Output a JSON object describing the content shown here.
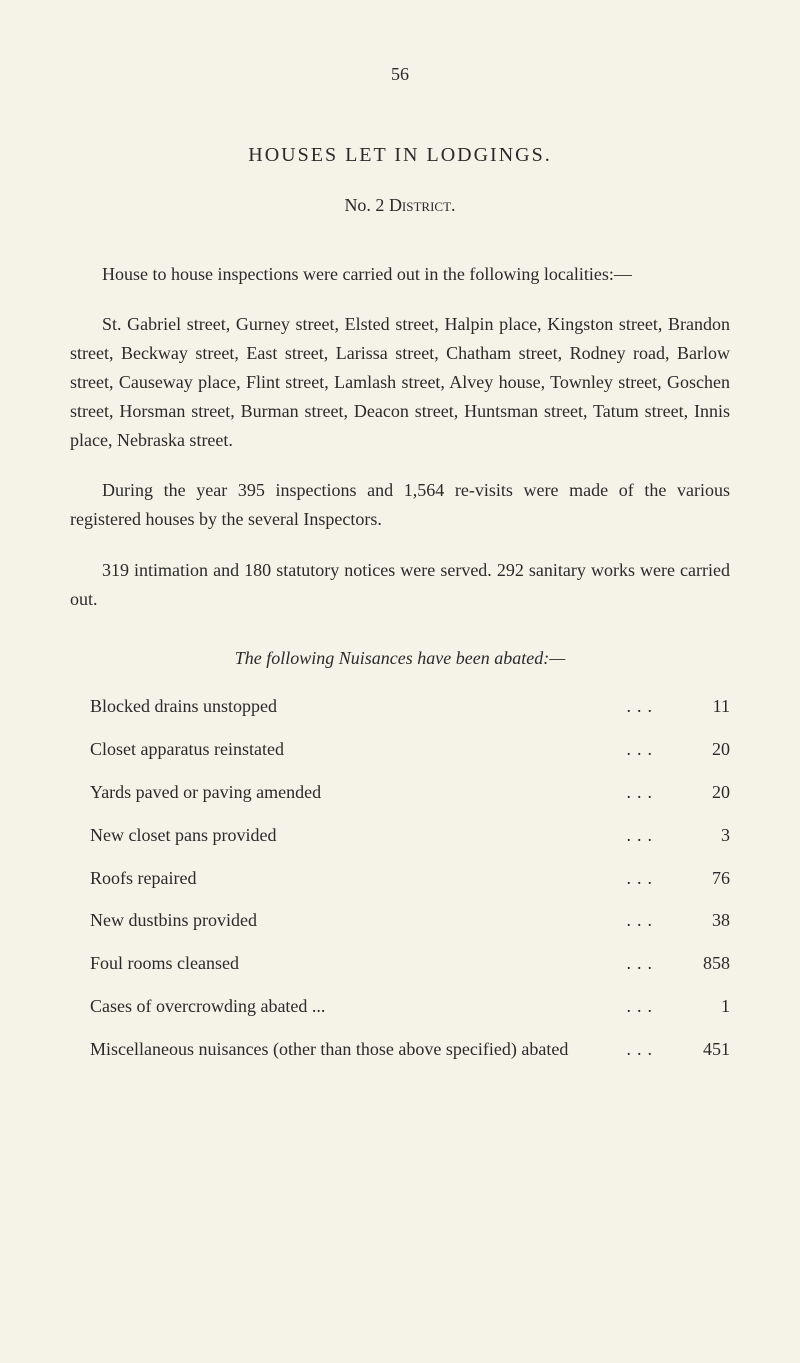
{
  "page_number": "56",
  "section_title": "HOUSES LET IN LODGINGS.",
  "subtitle_prefix": "No. 2 ",
  "subtitle_district": "District.",
  "paragraphs": {
    "p1": "House to house inspections were carried out in the following localities:—",
    "p2": "St. Gabriel street, Gurney street, Elsted street, Halpin place, Kingston street, Brandon street, Beckway street, East street, Larissa street, Chatham street, Rodney road, Barlow street, Causeway place, Flint street, Lamlash street, Alvey house, Townley street, Goschen street, Horsman street, Burman street, Deacon street, Huntsman street, Tatum street, Innis place, Nebraska street.",
    "p3": "During the year 395 inspections and 1,564 re-visits were made of the various registered houses by the several Inspectors.",
    "p4": "319 intimation and 180 statutory notices were served. 292 sanitary works were carried out."
  },
  "table_title": "The following Nuisances have been abated:—",
  "nuisances": {
    "items": [
      {
        "label": "Blocked drains unstopped",
        "value": "11"
      },
      {
        "label": "Closet apparatus reinstated",
        "value": "20"
      },
      {
        "label": "Yards paved or paving amended",
        "value": "20"
      },
      {
        "label": "New closet pans provided",
        "value": "3"
      },
      {
        "label": "Roofs repaired",
        "value": "76"
      },
      {
        "label": "New dustbins provided",
        "value": "38"
      },
      {
        "label": "Foul rooms cleansed",
        "value": "858"
      },
      {
        "label": "Cases of overcrowding abated ...",
        "value": "1"
      },
      {
        "label": "Miscellaneous nuisances (other than those above specified) abated",
        "value": "451"
      }
    ]
  },
  "colors": {
    "background": "#f5f2e8",
    "text": "#2a2a2a"
  },
  "typography": {
    "body_fontsize": 18,
    "title_fontsize": 20,
    "font_family": "Georgia, Times New Roman, serif"
  }
}
